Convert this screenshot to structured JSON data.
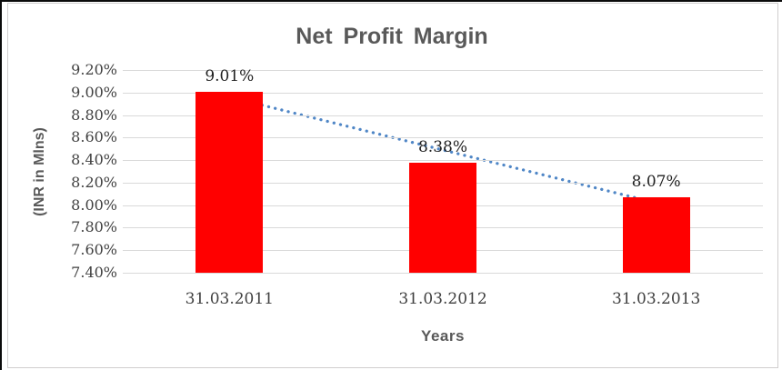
{
  "chart_data": {
    "type": "bar",
    "title": "Net Profit Margin",
    "xlabel": "Years",
    "ylabel": "(INR in Mlns)",
    "categories": [
      "31.03.2011",
      "31.03.2012",
      "31.03.2013"
    ],
    "values": [
      9.01,
      8.38,
      8.07
    ],
    "data_labels": [
      "9.01%",
      "8.38%",
      "8.07%"
    ],
    "ylim": [
      7.4,
      9.2
    ],
    "ytick_values": [
      9.2,
      9.0,
      8.8,
      8.6,
      8.4,
      8.2,
      8.0,
      7.8,
      7.6,
      7.4
    ],
    "yticks": [
      "9.20%",
      "9.00%",
      "8.80%",
      "8.60%",
      "8.40%",
      "8.20%",
      "8.00%",
      "7.80%",
      "7.60%",
      "7.40%"
    ],
    "grid": true,
    "legend": "none",
    "bar_color": "#ff0000",
    "gridline_color": "#d9d9d9",
    "title_color": "#595959",
    "tick_label_color": "#404040",
    "data_label_color": "#212121",
    "trendline": {
      "type": "linear",
      "style": "dotted",
      "color": "#4f86c6",
      "fit_endpoints": [
        8.96,
        8.02
      ]
    }
  }
}
